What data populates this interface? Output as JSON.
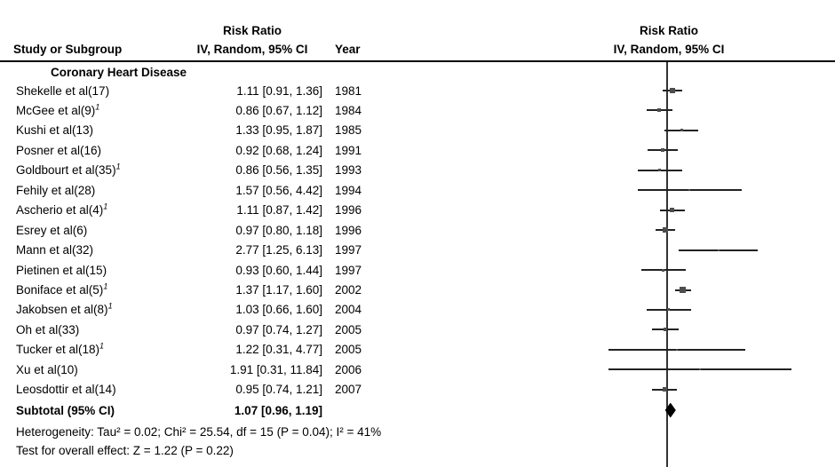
{
  "header": {
    "study_col": "Study or Subgroup",
    "effect_col_line1": "Risk Ratio",
    "effect_col_line2": "IV, Random, 95% CI",
    "year_col": "Year",
    "plot_col_line1": "Risk Ratio",
    "plot_col_line2": "IV, Random, 95% CI"
  },
  "chart_data": {
    "type": "forest",
    "effect_measure": "Risk Ratio",
    "method": "IV, Random, 95% CI",
    "x_scale": "log10",
    "null_line_value": 1,
    "subgroup": "Coronary Heart Disease",
    "studies": [
      {
        "label": "Shekelle et al(17)",
        "footnote": "",
        "rr": 1.11,
        "ci_low": 0.91,
        "ci_high": 1.36,
        "year": "1981"
      },
      {
        "label": "McGee et al(9)",
        "footnote": "1",
        "rr": 0.86,
        "ci_low": 0.67,
        "ci_high": 1.12,
        "year": "1984"
      },
      {
        "label": "Kushi et al(13)",
        "footnote": "",
        "rr": 1.33,
        "ci_low": 0.95,
        "ci_high": 1.87,
        "year": "1985"
      },
      {
        "label": "Posner et al(16)",
        "footnote": "",
        "rr": 0.92,
        "ci_low": 0.68,
        "ci_high": 1.24,
        "year": "1991"
      },
      {
        "label": "Goldbourt et al(35)",
        "footnote": "1",
        "rr": 0.86,
        "ci_low": 0.56,
        "ci_high": 1.35,
        "year": "1993"
      },
      {
        "label": "Fehily et al(28)",
        "footnote": "",
        "rr": 1.57,
        "ci_low": 0.56,
        "ci_high": 4.42,
        "year": "1994"
      },
      {
        "label": "Ascherio et al(4)",
        "footnote": "1",
        "rr": 1.11,
        "ci_low": 0.87,
        "ci_high": 1.42,
        "year": "1996"
      },
      {
        "label": "Esrey et al(6)",
        "footnote": "",
        "rr": 0.97,
        "ci_low": 0.8,
        "ci_high": 1.18,
        "year": "1996"
      },
      {
        "label": "Mann et al(32)",
        "footnote": "",
        "rr": 2.77,
        "ci_low": 1.25,
        "ci_high": 6.13,
        "year": "1997"
      },
      {
        "label": "Pietinen et al(15)",
        "footnote": "",
        "rr": 0.93,
        "ci_low": 0.6,
        "ci_high": 1.44,
        "year": "1997"
      },
      {
        "label": "Boniface et al(5)",
        "footnote": "1",
        "rr": 1.37,
        "ci_low": 1.17,
        "ci_high": 1.6,
        "year": "2002"
      },
      {
        "label": "Jakobsen et al(8)",
        "footnote": "1",
        "rr": 1.03,
        "ci_low": 0.66,
        "ci_high": 1.6,
        "year": "2004"
      },
      {
        "label": "Oh et al(33)",
        "footnote": "",
        "rr": 0.97,
        "ci_low": 0.74,
        "ci_high": 1.27,
        "year": "2005"
      },
      {
        "label": "Tucker et al(18)",
        "footnote": "1",
        "rr": 1.22,
        "ci_low": 0.31,
        "ci_high": 4.77,
        "year": "2005"
      },
      {
        "label": "Xu et al(10)",
        "footnote": "",
        "rr": 1.91,
        "ci_low": 0.31,
        "ci_high": 11.84,
        "year": "2006"
      },
      {
        "label": "Leosdottir et al(14)",
        "footnote": "",
        "rr": 0.95,
        "ci_low": 0.74,
        "ci_high": 1.21,
        "year": "2007"
      }
    ],
    "subtotal": {
      "label": "Subtotal (95% CI)",
      "rr": 1.07,
      "ci_low": 0.96,
      "ci_high": 1.19
    },
    "heterogeneity": "Heterogeneity: Tau² = 0.02; Chi² = 25.54, df = 15 (P = 0.04); I² = 41%",
    "overall_effect": "Test for overall effect: Z = 1.22 (P = 0.22)"
  },
  "colors": {
    "marker": "#4d4d4d",
    "ci_line": "#222222",
    "diamond": "#000000",
    "axis": "#333333",
    "text": "#000000"
  }
}
